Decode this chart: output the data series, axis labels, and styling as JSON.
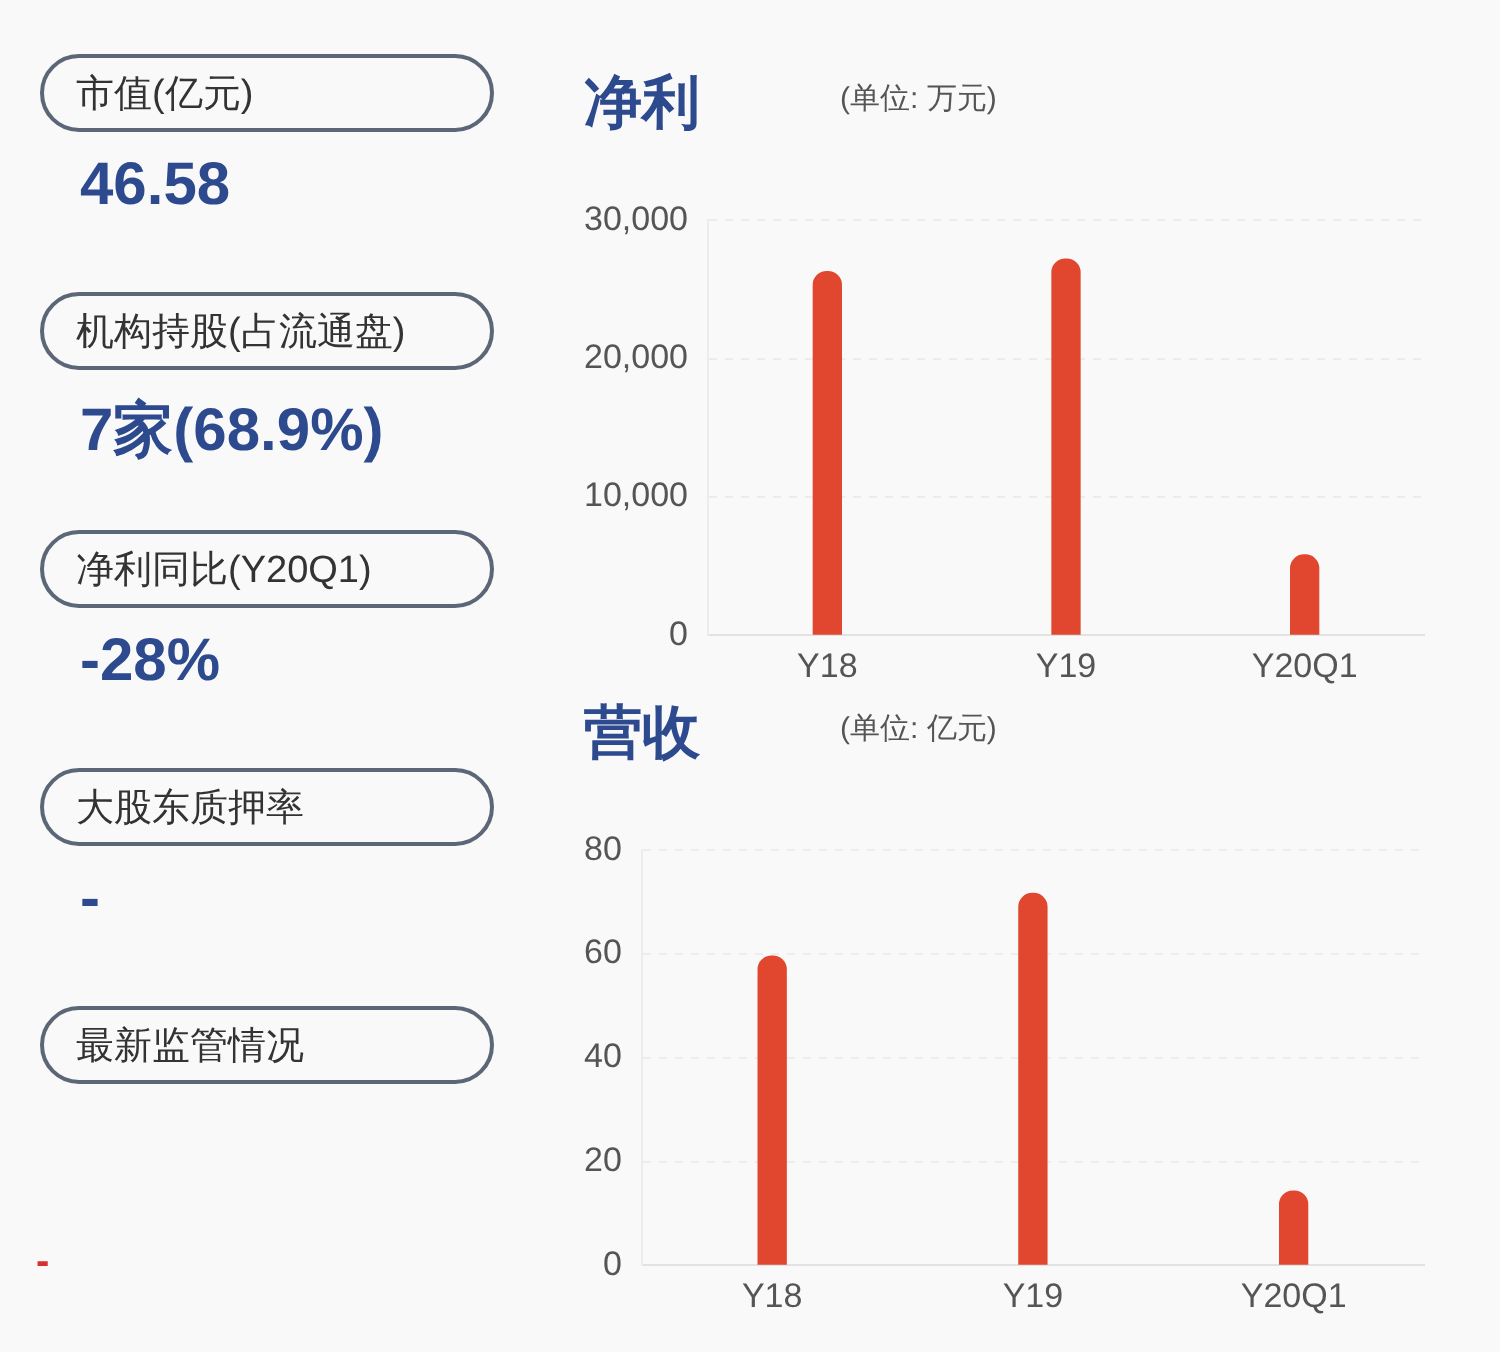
{
  "chart_data": [
    {
      "type": "other",
      "annotations": [
        "市值(亿元)",
        "46.58",
        "机构持股(占流通盘)",
        "7家(68.9%)",
        "净利同比(Y20Q1)",
        "-28%",
        "大股东质押率",
        "-",
        "最新监管情况",
        "-"
      ]
    },
    {
      "type": "bar",
      "title": "净利",
      "subtitle": "(单位: 万元)",
      "categories": [
        "Y18",
        "Y19",
        "Y20Q1"
      ],
      "values": [
        26300,
        27200,
        5800
      ],
      "color": "#e0472e",
      "ylim": [
        0,
        30000
      ],
      "yticks": [
        0,
        {
          "value": 10000,
          "label": "10,000"
        },
        {
          "value": 20000,
          "label": "20,000"
        },
        {
          "value": 30000,
          "label": "30,000"
        }
      ],
      "grid": "y"
    },
    {
      "type": "bar",
      "title": "营收",
      "subtitle": "(单位: 亿元)",
      "categories": [
        "Y18",
        "Y19",
        "Y20Q1"
      ],
      "values": [
        59.6,
        71.7,
        14.3
      ],
      "color": "#e0472e",
      "ylim": [
        0,
        80
      ],
      "yticks": [
        0,
        20,
        40,
        60,
        80
      ],
      "grid": "y"
    }
  ]
}
